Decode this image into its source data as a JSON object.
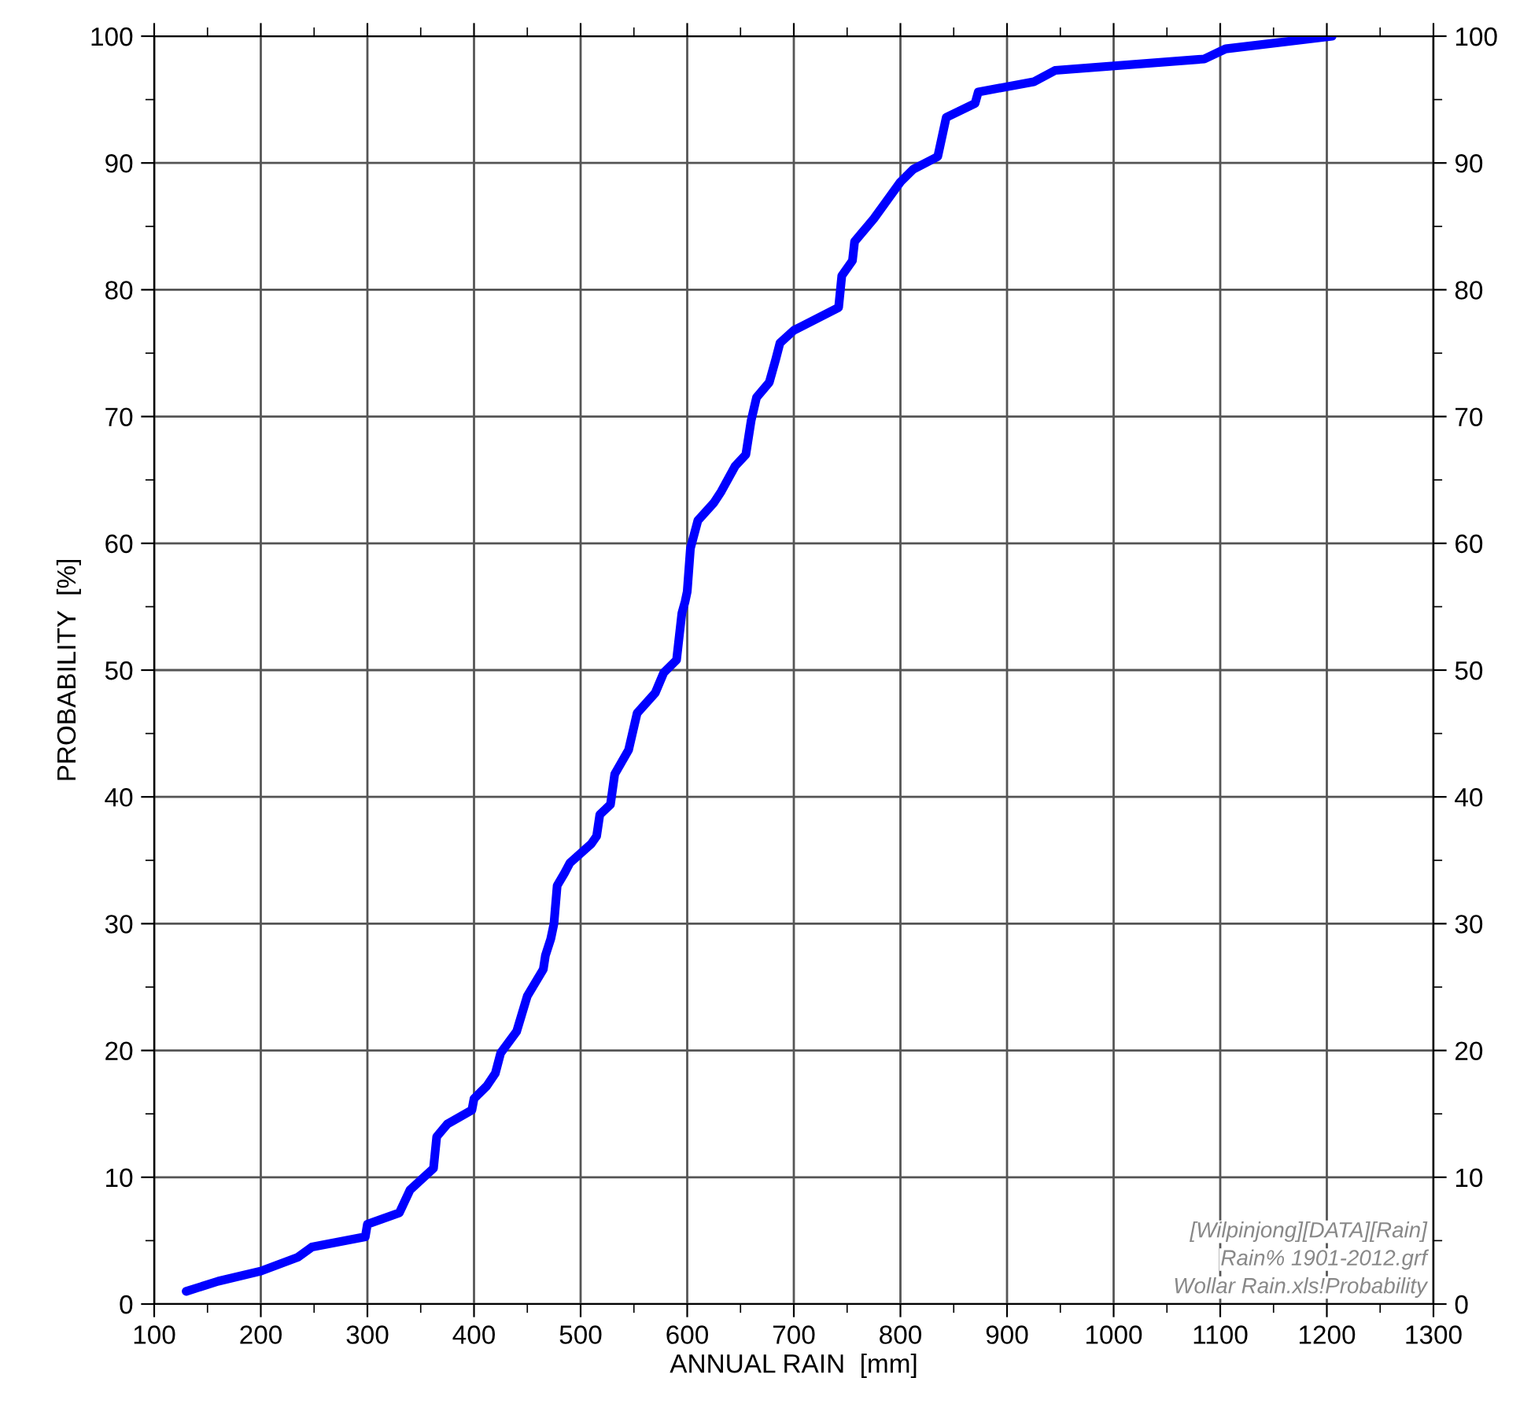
{
  "chart_data": {
    "type": "line",
    "xlabel": "ANNUAL RAIN  [mm]",
    "ylabel": "PROBABILITY  [%]",
    "x": [
      130,
      160,
      200,
      235,
      248,
      298,
      300,
      330,
      340,
      362,
      365,
      375,
      398,
      400,
      412,
      420,
      425,
      440,
      450,
      465,
      467,
      472,
      475,
      478,
      485,
      490,
      510,
      515,
      518,
      528,
      532,
      545,
      553,
      570,
      578,
      590,
      595,
      598,
      600,
      603,
      610,
      625,
      632,
      645,
      655,
      660,
      665,
      677,
      683,
      687,
      700,
      742,
      745,
      755,
      757,
      775,
      800,
      812,
      835,
      843,
      870,
      873,
      925,
      945,
      1085,
      1105,
      1205
    ],
    "series": [
      {
        "color": "#0000ff",
        "values": [
          1,
          1.8,
          2.6,
          3.7,
          4.5,
          5.3,
          6.3,
          7.2,
          9,
          10.7,
          13.2,
          14.2,
          15.3,
          16.2,
          17.2,
          18.2,
          19.8,
          21.5,
          24.3,
          26.4,
          27.5,
          28.8,
          30,
          33,
          34,
          34.8,
          36.3,
          36.9,
          38.6,
          39.4,
          41.8,
          43.7,
          46.6,
          48.2,
          49.8,
          50.8,
          54.5,
          55.4,
          56.2,
          59.6,
          61.8,
          63.2,
          64.1,
          66.1,
          67,
          69.7,
          71.5,
          72.7,
          74.5,
          75.8,
          76.8,
          78.6,
          81.1,
          82.3,
          83.8,
          85.6,
          88.5,
          89.5,
          90.5,
          93.6,
          94.7,
          95.6,
          96.4,
          97.3,
          98.2,
          99,
          100
        ]
      }
    ],
    "xlim": [
      100,
      1300
    ],
    "xticks": [
      100,
      {
        "value": 150,
        "label": null
      },
      200,
      {
        "value": 250,
        "label": null
      },
      300,
      {
        "value": 350,
        "label": null
      },
      400,
      {
        "value": 450,
        "label": null
      },
      500,
      {
        "value": 550,
        "label": null
      },
      600,
      {
        "value": 650,
        "label": null
      },
      700,
      {
        "value": 750,
        "label": null
      },
      800,
      {
        "value": 850,
        "label": null
      },
      900,
      {
        "value": 950,
        "label": null
      },
      1000,
      {
        "value": 1050,
        "label": null
      },
      1100,
      {
        "value": 1150,
        "label": null
      },
      1200,
      {
        "value": 1250,
        "label": null
      },
      1300
    ],
    "ylim": [
      0,
      100
    ],
    "yticks": [
      0,
      {
        "value": 5,
        "label": null
      },
      10,
      {
        "value": 15,
        "label": null
      },
      20,
      {
        "value": 25,
        "label": null
      },
      30,
      {
        "value": 35,
        "label": null
      },
      40,
      {
        "value": 45,
        "label": null
      },
      50,
      {
        "value": 55,
        "label": null
      },
      60,
      {
        "value": 65,
        "label": null
      },
      70,
      {
        "value": 75,
        "label": null
      },
      80,
      {
        "value": 85,
        "label": null
      },
      90,
      {
        "value": 95,
        "label": null
      },
      100
    ],
    "y2lim": [
      0,
      100
    ],
    "y2ticks": [
      0,
      {
        "value": 5,
        "label": null
      },
      10,
      {
        "value": 15,
        "label": null
      },
      20,
      {
        "value": 25,
        "label": null
      },
      30,
      {
        "value": 35,
        "label": null
      },
      40,
      {
        "value": 45,
        "label": null
      },
      50,
      {
        "value": 55,
        "label": null
      },
      60,
      {
        "value": 65,
        "label": null
      },
      70,
      {
        "value": 75,
        "label": null
      },
      80,
      {
        "value": 85,
        "label": null
      },
      90,
      {
        "value": 95,
        "label": null
      },
      100
    ],
    "grid": true,
    "marker": "none",
    "line_style": "solid",
    "legend": false,
    "annotations": [
      "[Wilpinjong][DATA][Rain]",
      "Rain% 1901-2012.grf",
      "Wollar Rain.xls!Probability"
    ]
  }
}
